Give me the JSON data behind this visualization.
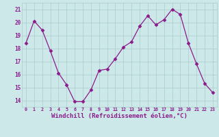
{
  "x": [
    0,
    1,
    2,
    3,
    4,
    5,
    6,
    7,
    8,
    9,
    10,
    11,
    12,
    13,
    14,
    15,
    16,
    17,
    18,
    19,
    20,
    21,
    22,
    23
  ],
  "y": [
    18.4,
    20.1,
    19.4,
    17.8,
    16.1,
    15.2,
    13.9,
    13.9,
    14.8,
    16.3,
    16.4,
    17.2,
    18.1,
    18.5,
    19.7,
    20.5,
    19.8,
    20.2,
    21.0,
    20.6,
    18.4,
    16.8,
    15.3,
    14.6
  ],
  "line_color": "#8b1a8b",
  "marker": "D",
  "marker_size": 2.5,
  "line_width": 0.9,
  "xlabel": "Windchill (Refroidissement éolien,°C)",
  "xlabel_fontsize": 6.5,
  "background_color": "#cce8e8",
  "grid_color": "#aacccc",
  "tick_color": "#8b1a8b",
  "ylim": [
    13.5,
    21.5
  ],
  "yticks": [
    14,
    15,
    16,
    17,
    18,
    19,
    20,
    21
  ],
  "xticks": [
    0,
    1,
    2,
    3,
    4,
    5,
    6,
    7,
    8,
    9,
    10,
    11,
    12,
    13,
    14,
    15,
    16,
    17,
    18,
    19,
    20,
    21,
    22,
    23
  ]
}
